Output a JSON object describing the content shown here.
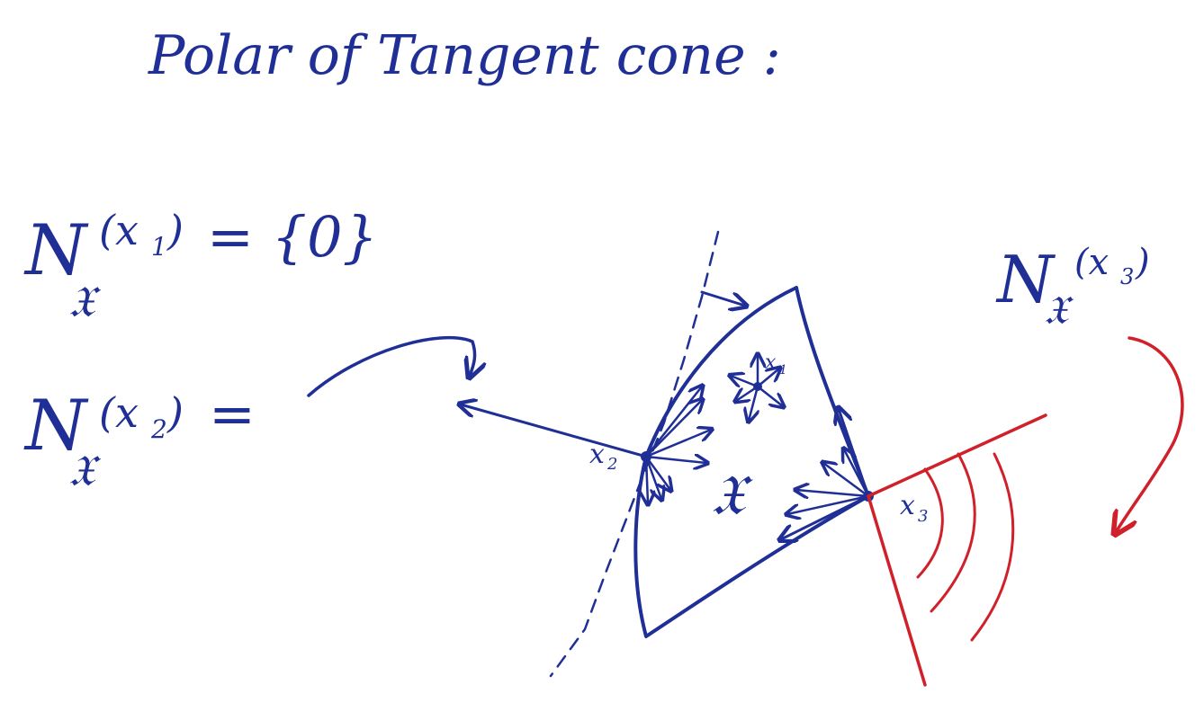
{
  "colors": {
    "blue_ink": "#1f2f96",
    "red_ink": "#d0202a",
    "background": "#ffffff"
  },
  "title": "Polar of Tangent cone :",
  "equations": {
    "n_x1": {
      "symbol": "N",
      "subscript": "𝔛",
      "argument": "(x",
      "arg_index": "1",
      "close": ")",
      "rhs": "= {0}"
    },
    "n_x2": {
      "symbol": "N",
      "subscript": "𝔛",
      "argument": "(x",
      "arg_index": "2",
      "close": ")",
      "rhs": "="
    },
    "n_x3": {
      "symbol": "N",
      "subscript": "𝔛",
      "argument": "(x",
      "arg_index": "3",
      "close": ")"
    }
  },
  "figure": {
    "set_label": "𝔛",
    "points": {
      "x1": "x",
      "x1_index": "1",
      "x2": "x",
      "x2_index": "2",
      "x3": "x",
      "x3_index": "3"
    }
  }
}
